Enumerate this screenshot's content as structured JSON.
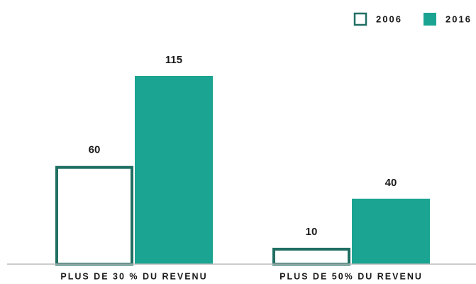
{
  "chart_data": {
    "type": "bar",
    "categories": [
      "PLUS DE 30 % DU REVENU",
      "PLUS DE 50% DU REVENU"
    ],
    "series": [
      {
        "name": "2006",
        "color": "#1f6f62",
        "fill": "none",
        "values": [
          60,
          10
        ]
      },
      {
        "name": "2016",
        "color": "#1ba492",
        "values": [
          115,
          40
        ]
      }
    ],
    "legend": "top-right"
  }
}
